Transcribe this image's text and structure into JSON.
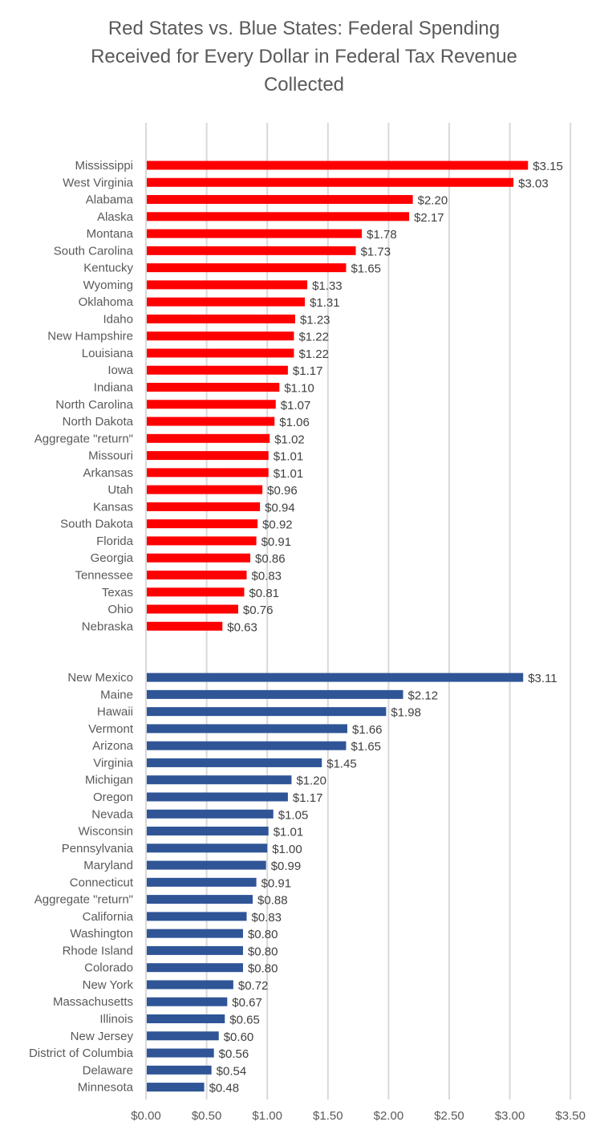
{
  "chart_data": {
    "type": "bar",
    "orientation": "horizontal",
    "title": "Red States vs. Blue States: Federal Spending Received for Every Dollar in Federal Tax Revenue Collected",
    "title_lines": [
      "Red States vs. Blue States: Federal Spending",
      "Received for Every Dollar in Federal Tax Revenue",
      "Collected"
    ],
    "xlabel": "",
    "ylabel": "",
    "xlim": [
      0,
      3.5
    ],
    "x_ticks": [
      0,
      0.5,
      1.0,
      1.5,
      2.0,
      2.5,
      3.0,
      3.5
    ],
    "x_tick_labels": [
      "$0.00",
      "$0.50",
      "$1.00",
      "$1.50",
      "$2.00",
      "$2.50",
      "$3.00",
      "$3.50"
    ],
    "grid": "vertical",
    "legend": "none",
    "series": [
      {
        "name": "Red States",
        "color": "#ff0000",
        "categories": [
          "Mississippi",
          "West Virginia",
          "Alabama",
          "Alaska",
          "Montana",
          "South Carolina",
          "Kentucky",
          "Wyoming",
          "Oklahoma",
          "Idaho",
          "New Hampshire",
          "Louisiana",
          "Iowa",
          "Indiana",
          "North Carolina",
          "North Dakota",
          "Aggregate \"return\"",
          "Missouri",
          "Arkansas",
          "Utah",
          "Kansas",
          "South Dakota",
          "Florida",
          "Georgia",
          "Tennessee",
          "Texas",
          "Ohio",
          "Nebraska"
        ],
        "values": [
          3.15,
          3.03,
          2.2,
          2.17,
          1.78,
          1.73,
          1.65,
          1.33,
          1.31,
          1.23,
          1.22,
          1.22,
          1.17,
          1.1,
          1.07,
          1.06,
          1.02,
          1.01,
          1.01,
          0.96,
          0.94,
          0.92,
          0.91,
          0.86,
          0.83,
          0.81,
          0.76,
          0.63
        ],
        "labels": [
          "$3.15",
          "$3.03",
          "$2.20",
          "$2.17",
          "$1.78",
          "$1.73",
          "$1.65",
          "$1.33",
          "$1.31",
          "$1.23",
          "$1.22",
          "$1.22",
          "$1.17",
          "$1.10",
          "$1.07",
          "$1.06",
          "$1.02",
          "$1.01",
          "$1.01",
          "$0.96",
          "$0.94",
          "$0.92",
          "$0.91",
          "$0.86",
          "$0.83",
          "$0.81",
          "$0.76",
          "$0.63"
        ]
      },
      {
        "name": "Blue States",
        "color": "#2f5597",
        "categories": [
          "New Mexico",
          "Maine",
          "Hawaii",
          "Vermont",
          "Arizona",
          "Virginia",
          "Michigan",
          "Oregon",
          "Nevada",
          "Wisconsin",
          "Pennsylvania",
          "Maryland",
          "Connecticut",
          "Aggregate \"return\"",
          "California",
          "Washington",
          "Rhode Island",
          "Colorado",
          "New York",
          "Massachusetts",
          "Illinois",
          "New Jersey",
          "District of Columbia",
          "Delaware",
          "Minnesota"
        ],
        "values": [
          3.11,
          2.12,
          1.98,
          1.66,
          1.65,
          1.45,
          1.2,
          1.17,
          1.05,
          1.01,
          1.0,
          0.99,
          0.91,
          0.88,
          0.83,
          0.8,
          0.8,
          0.8,
          0.72,
          0.67,
          0.65,
          0.6,
          0.56,
          0.54,
          0.48
        ],
        "labels": [
          "$3.11",
          "$2.12",
          "$1.98",
          "$1.66",
          "$1.65",
          "$1.45",
          "$1.20",
          "$1.17",
          "$1.05",
          "$1.01",
          "$1.00",
          "$0.99",
          "$0.91",
          "$0.88",
          "$0.83",
          "$0.80",
          "$0.80",
          "$0.80",
          "$0.72",
          "$0.67",
          "$0.65",
          "$0.60",
          "$0.56",
          "$0.54",
          "$0.48"
        ]
      }
    ]
  }
}
